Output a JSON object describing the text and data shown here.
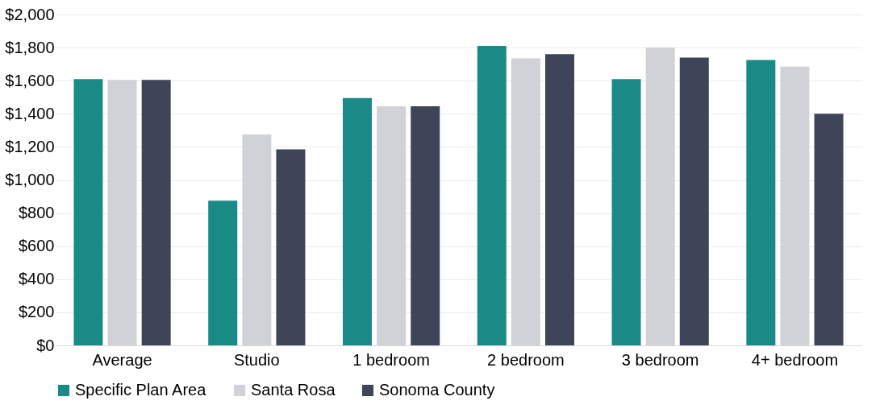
{
  "chart_data": {
    "type": "bar",
    "categories": [
      "Average",
      "Studio",
      "1 bedroom",
      "2 bedroom",
      "3 bedroom",
      "4+ bedroom"
    ],
    "series": [
      {
        "name": "Specific Plan Area",
        "color": "#1a8a87",
        "values": [
          1610,
          875,
          1495,
          1810,
          1610,
          1725
        ]
      },
      {
        "name": "Santa Rosa",
        "color": "#d1d2d7",
        "values": [
          1605,
          1275,
          1445,
          1735,
          1800,
          1685
        ]
      },
      {
        "name": "Sonoma County",
        "color": "#3f4559",
        "values": [
          1605,
          1185,
          1445,
          1760,
          1740,
          1400
        ]
      }
    ],
    "ylim": [
      0,
      2000
    ],
    "yticks": [
      {
        "value": 0,
        "label": "$0"
      },
      {
        "value": 200,
        "label": "$200"
      },
      {
        "value": 400,
        "label": "$400"
      },
      {
        "value": 600,
        "label": "$600"
      },
      {
        "value": 800,
        "label": "$800"
      },
      {
        "value": 1000,
        "label": "$1,000"
      },
      {
        "value": 1200,
        "label": "$1,200"
      },
      {
        "value": 1400,
        "label": "$1,400"
      },
      {
        "value": 1600,
        "label": "$1,600"
      },
      {
        "value": 1800,
        "label": "$1,800"
      },
      {
        "value": 2000,
        "label": "$2,000"
      }
    ],
    "grid": "y",
    "legend": "bottom"
  }
}
